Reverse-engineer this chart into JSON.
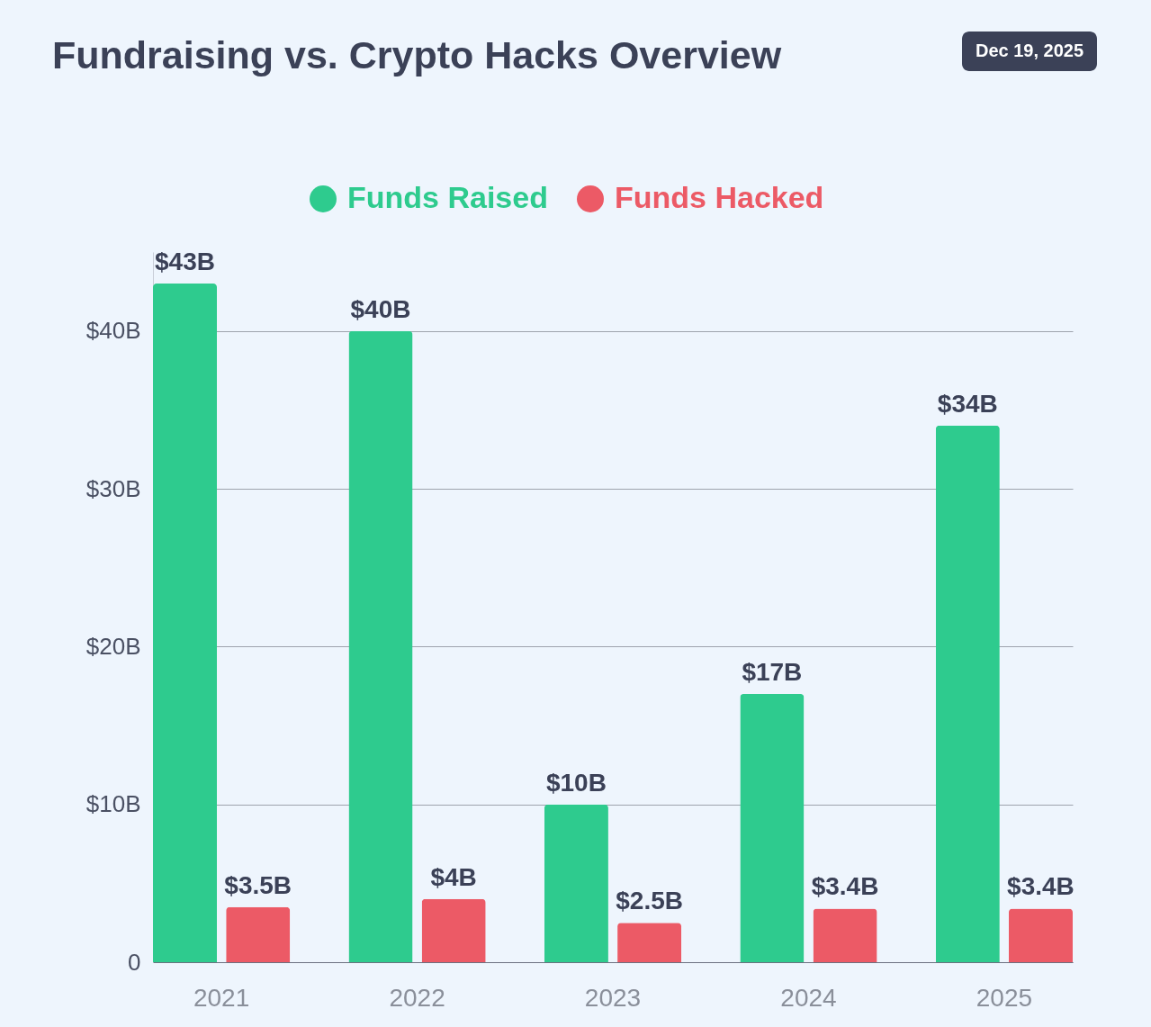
{
  "chart_data": {
    "type": "bar",
    "title": "Fundraising vs. Crypto Hacks Overview",
    "annotations": [
      "Dec 19, 2025"
    ],
    "categories": [
      "2021",
      "2022",
      "2023",
      "2024",
      "2025"
    ],
    "series": [
      {
        "name": "Funds Raised",
        "color": "#2ecb8e",
        "values": [
          43,
          40,
          10,
          17,
          34
        ],
        "value_labels": [
          "$43B",
          "$40B",
          "$10B",
          "$17B",
          "$34B"
        ]
      },
      {
        "name": "Funds Hacked",
        "color": "#ec5a66",
        "values": [
          3.5,
          4,
          2.5,
          3.4,
          3.4
        ],
        "value_labels": [
          "$3.5B",
          "$4B",
          "$2.5B",
          "$3.4B",
          "$3.4B"
        ]
      }
    ],
    "ylim": [
      0,
      45
    ],
    "yticks": [
      0,
      {
        "value": 10,
        "label": "$10B"
      },
      {
        "value": 20,
        "label": "$20B"
      },
      {
        "value": 30,
        "label": "$30B"
      },
      {
        "value": 40,
        "label": "$40B"
      }
    ],
    "grid": "y",
    "legend": "top"
  }
}
